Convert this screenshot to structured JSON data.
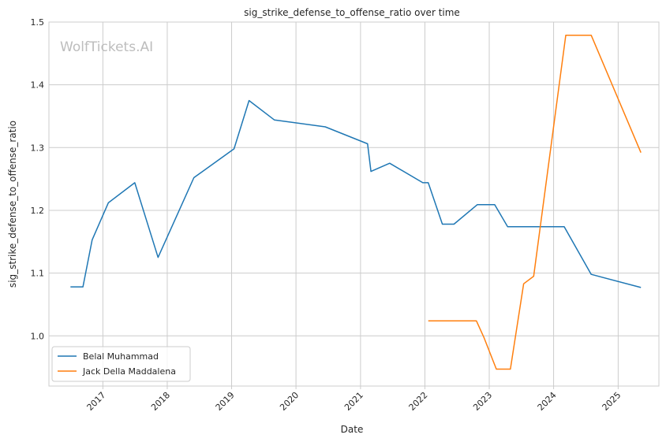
{
  "chart_data": {
    "type": "line",
    "title": "sig_strike_defense_to_offense_ratio over time",
    "xlabel": "Date",
    "ylabel": "sig_strike_defense_to_offense_ratio",
    "watermark": "WolfTickets.AI",
    "x_ticks": [
      "2017",
      "2018",
      "2019",
      "2020",
      "2021",
      "2022",
      "2023",
      "2024",
      "2025"
    ],
    "y_ticks": [
      "1.0",
      "1.1",
      "1.2",
      "1.3",
      "1.4",
      "1.5"
    ],
    "xlim": [
      "2016-03-01",
      "2025-08-20"
    ],
    "ylim": [
      0.92,
      1.5
    ],
    "grid": true,
    "legend_position": "lower-left",
    "series": [
      {
        "name": "Belal Muhammad",
        "color": "#1f77b4",
        "points": [
          [
            "2016-07-01",
            1.078
          ],
          [
            "2016-09-10",
            1.078
          ],
          [
            "2016-11-01",
            1.153
          ],
          [
            "2017-02-01",
            1.212
          ],
          [
            "2017-07-01",
            1.244
          ],
          [
            "2017-11-10",
            1.125
          ],
          [
            "2018-06-01",
            1.252
          ],
          [
            "2019-01-15",
            1.298
          ],
          [
            "2019-04-10",
            1.375
          ],
          [
            "2019-09-01",
            1.344
          ],
          [
            "2020-06-15",
            1.333
          ],
          [
            "2021-02-10",
            1.306
          ],
          [
            "2021-03-01",
            1.262
          ],
          [
            "2021-06-15",
            1.275
          ],
          [
            "2021-12-20",
            1.244
          ],
          [
            "2022-01-20",
            1.244
          ],
          [
            "2022-04-10",
            1.178
          ],
          [
            "2022-06-15",
            1.178
          ],
          [
            "2022-10-25",
            1.209
          ],
          [
            "2023-02-01",
            1.209
          ],
          [
            "2023-04-15",
            1.174
          ],
          [
            "2024-03-01",
            1.174
          ],
          [
            "2024-08-01",
            1.098
          ],
          [
            "2025-05-10",
            1.077
          ]
        ]
      },
      {
        "name": "Jack Della Maddalena",
        "color": "#ff7f0e",
        "points": [
          [
            "2022-01-20",
            1.024
          ],
          [
            "2022-10-20",
            1.024
          ],
          [
            "2022-12-01",
            0.998
          ],
          [
            "2023-02-10",
            0.947
          ],
          [
            "2023-05-01",
            0.947
          ],
          [
            "2023-07-15",
            1.083
          ],
          [
            "2023-09-10",
            1.095
          ],
          [
            "2024-03-10",
            1.479
          ],
          [
            "2024-08-01",
            1.479
          ],
          [
            "2025-05-10",
            1.292
          ]
        ]
      }
    ]
  }
}
